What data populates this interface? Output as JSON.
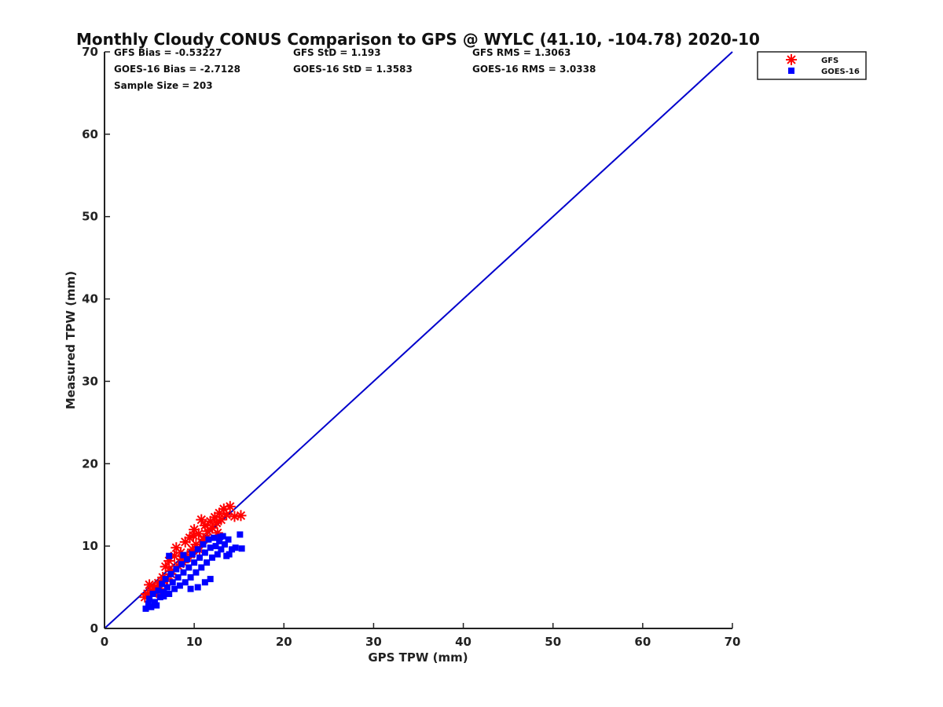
{
  "chart_data": {
    "type": "scatter",
    "title": "Monthly Cloudy CONUS Comparison to GPS @ WYLC (41.10, -104.78) 2020-10",
    "xlabel": "GPS TPW (mm)",
    "ylabel": "Measured TPW (mm)",
    "xlim": [
      0,
      70
    ],
    "ylim": [
      0,
      70
    ],
    "xticks": [
      "0",
      "10",
      "20",
      "30",
      "40",
      "50",
      "60",
      "70"
    ],
    "yticks": [
      "0",
      "10",
      "20",
      "30",
      "40",
      "50",
      "60",
      "70"
    ],
    "grid": false,
    "legend_position": "top-right",
    "stats": [
      [
        "GFS Bias = -0.53227",
        "GFS StD = 1.193",
        "GFS RMS = 1.3063"
      ],
      [
        "GOES-16 Bias = -2.7128",
        "GOES-16 StD = 1.3583",
        "GOES-16 RMS = 3.0338"
      ],
      [
        "Sample Size = 203"
      ]
    ],
    "reference_line": {
      "x": [
        0,
        70
      ],
      "y": [
        0,
        70
      ],
      "color": "#0000cc"
    },
    "series": [
      {
        "name": "GFS",
        "marker": "asterisk",
        "color": "#ff0000",
        "points": [
          [
            4.5,
            3.8
          ],
          [
            4.8,
            4.2
          ],
          [
            5.0,
            5.3
          ],
          [
            5.3,
            4.6
          ],
          [
            5.6,
            5.0
          ],
          [
            6.0,
            5.5
          ],
          [
            6.2,
            4.8
          ],
          [
            6.5,
            6.2
          ],
          [
            6.8,
            7.5
          ],
          [
            7.0,
            6.0
          ],
          [
            7.2,
            8.2
          ],
          [
            7.5,
            7.0
          ],
          [
            7.8,
            8.8
          ],
          [
            8.0,
            9.8
          ],
          [
            8.2,
            7.6
          ],
          [
            8.5,
            9.2
          ],
          [
            8.8,
            8.0
          ],
          [
            9.0,
            10.5
          ],
          [
            9.2,
            8.6
          ],
          [
            9.5,
            11.0
          ],
          [
            9.8,
            9.6
          ],
          [
            10.0,
            12.0
          ],
          [
            10.2,
            10.2
          ],
          [
            10.5,
            11.5
          ],
          [
            10.8,
            13.2
          ],
          [
            11.0,
            10.8
          ],
          [
            11.2,
            12.5
          ],
          [
            11.5,
            11.8
          ],
          [
            11.8,
            13.0
          ],
          [
            12.0,
            12.2
          ],
          [
            12.3,
            13.5
          ],
          [
            12.5,
            12.8
          ],
          [
            12.8,
            14.0
          ],
          [
            13.0,
            13.2
          ],
          [
            13.3,
            14.5
          ],
          [
            13.6,
            13.8
          ],
          [
            14.0,
            14.8
          ],
          [
            14.5,
            13.6
          ],
          [
            15.2,
            13.7
          ],
          [
            9.6,
            9.0
          ],
          [
            10.6,
            9.5
          ],
          [
            11.4,
            11.0
          ],
          [
            6.6,
            5.8
          ],
          [
            8.6,
            8.4
          ],
          [
            12.6,
            11.6
          ],
          [
            7.4,
            6.6
          ],
          [
            5.8,
            4.4
          ],
          [
            9.9,
            11.3
          ]
        ]
      },
      {
        "name": "GOES-16",
        "marker": "square",
        "color": "#0000ff",
        "points": [
          [
            4.6,
            2.4
          ],
          [
            4.9,
            3.0
          ],
          [
            5.0,
            3.6
          ],
          [
            5.2,
            2.6
          ],
          [
            5.4,
            4.2
          ],
          [
            5.6,
            3.2
          ],
          [
            5.8,
            2.8
          ],
          [
            6.0,
            4.6
          ],
          [
            6.2,
            3.8
          ],
          [
            6.4,
            5.4
          ],
          [
            6.6,
            4.4
          ],
          [
            6.8,
            6.0
          ],
          [
            7.0,
            5.0
          ],
          [
            7.2,
            4.2
          ],
          [
            7.4,
            6.6
          ],
          [
            7.6,
            5.6
          ],
          [
            7.8,
            4.8
          ],
          [
            8.0,
            7.2
          ],
          [
            8.2,
            6.2
          ],
          [
            8.4,
            5.2
          ],
          [
            8.6,
            7.8
          ],
          [
            8.8,
            6.8
          ],
          [
            9.0,
            5.6
          ],
          [
            9.2,
            8.4
          ],
          [
            9.4,
            7.4
          ],
          [
            9.6,
            6.2
          ],
          [
            9.8,
            9.0
          ],
          [
            10.0,
            8.0
          ],
          [
            10.2,
            6.8
          ],
          [
            10.4,
            9.6
          ],
          [
            10.6,
            8.6
          ],
          [
            10.8,
            7.4
          ],
          [
            11.0,
            10.2
          ],
          [
            11.2,
            9.2
          ],
          [
            11.4,
            8.0
          ],
          [
            11.6,
            10.8
          ],
          [
            11.8,
            9.8
          ],
          [
            12.0,
            8.6
          ],
          [
            12.2,
            11.0
          ],
          [
            12.4,
            10.0
          ],
          [
            12.6,
            9.0
          ],
          [
            12.8,
            10.6
          ],
          [
            13.0,
            9.6
          ],
          [
            13.2,
            11.2
          ],
          [
            13.4,
            10.2
          ],
          [
            13.6,
            8.8
          ],
          [
            13.8,
            10.8
          ],
          [
            14.2,
            9.6
          ],
          [
            14.6,
            9.8
          ],
          [
            15.1,
            11.4
          ],
          [
            15.3,
            9.7
          ],
          [
            11.8,
            6.0
          ],
          [
            11.2,
            5.6
          ],
          [
            7.2,
            8.8
          ],
          [
            8.8,
            8.9
          ],
          [
            6.6,
            3.9
          ],
          [
            9.6,
            4.8
          ],
          [
            10.4,
            5.0
          ],
          [
            12.9,
            11.1
          ],
          [
            13.9,
            9.0
          ]
        ]
      }
    ]
  }
}
